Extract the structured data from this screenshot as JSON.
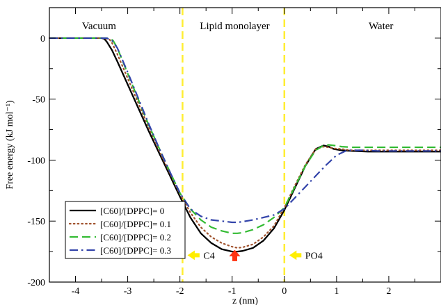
{
  "chart_data": {
    "type": "line",
    "title": "",
    "xlabel": "z (nm)",
    "ylabel": "Free energy (kJ mol⁻¹)",
    "xlim": [
      -4.5,
      3.0
    ],
    "ylim": [
      -200,
      25
    ],
    "x_ticks": [
      -4,
      -3,
      -2,
      -1,
      0,
      1,
      2
    ],
    "x_tick_labels": [
      "-4",
      "-3",
      "-2",
      "-1",
      "0",
      "1",
      "2"
    ],
    "y_ticks": [
      0,
      -50,
      -100,
      -150,
      -200
    ],
    "y_tick_labels": [
      "0",
      "-50",
      "-100",
      "-150",
      "-200"
    ],
    "grid": false,
    "legend_position": "bottom-left",
    "regions": [
      {
        "label": "Vacuum",
        "x": -3.55
      },
      {
        "label": "Lipid monolayer",
        "x": -0.95
      },
      {
        "label": "Water",
        "x": 1.85
      }
    ],
    "vertical_lines": [
      {
        "x": -1.95,
        "color": "#ffee33",
        "style": "dashed"
      },
      {
        "x": 0.0,
        "color": "#ffee33",
        "style": "dashed"
      }
    ],
    "markers": [
      {
        "label": "C4",
        "x": -1.95,
        "y": -178,
        "direction": "left",
        "color": "#ffee00"
      },
      {
        "label": "PO4",
        "x": 0.0,
        "y": -178,
        "direction": "left",
        "color": "#ffee00"
      },
      {
        "label": "",
        "x": -0.95,
        "y": -178,
        "direction": "up",
        "color": "#ff3311"
      }
    ],
    "series": [
      {
        "name": "[C60]/[DPPC]= 0",
        "color": "#000000",
        "style": "solid",
        "x": [
          -4.5,
          -3.5,
          -3.45,
          -3.4,
          -3.3,
          -3.2,
          -3.0,
          -2.8,
          -2.6,
          -2.4,
          -2.2,
          -2.0,
          -1.8,
          -1.6,
          -1.4,
          -1.2,
          -1.0,
          -0.9,
          -0.8,
          -0.6,
          -0.4,
          -0.2,
          0.0,
          0.2,
          0.4,
          0.6,
          0.75,
          0.85,
          0.95,
          1.1,
          1.3,
          1.6,
          2.0,
          3.0
        ],
        "y": [
          0,
          0,
          -0.5,
          -3,
          -10,
          -19,
          -38,
          -57,
          -76,
          -94,
          -112,
          -130,
          -147,
          -160,
          -168,
          -173,
          -175,
          -175,
          -174.5,
          -172,
          -166,
          -156,
          -141,
          -123,
          -105,
          -91,
          -88,
          -89,
          -91,
          -92,
          -92.5,
          -93,
          -93,
          -93
        ]
      },
      {
        "name": "[C60]/[DPPC]= 0.1",
        "color": "#a0522d",
        "style": "dotted",
        "x": [
          -4.5,
          -3.45,
          -3.35,
          -3.3,
          -3.2,
          -3.0,
          -2.8,
          -2.6,
          -2.4,
          -2.2,
          -2.0,
          -1.8,
          -1.6,
          -1.4,
          -1.2,
          -1.0,
          -0.9,
          -0.8,
          -0.6,
          -0.4,
          -0.2,
          0.0,
          0.2,
          0.4,
          0.6,
          0.75,
          0.85,
          0.95,
          1.1,
          1.3,
          1.6,
          2.0,
          3.0
        ],
        "y": [
          0,
          0,
          -1,
          -4,
          -13,
          -33,
          -53,
          -73,
          -92,
          -110,
          -128,
          -143,
          -155,
          -163,
          -168,
          -171,
          -172,
          -171.5,
          -169,
          -163,
          -154,
          -139,
          -121,
          -104,
          -91,
          -89,
          -89.5,
          -90.5,
          -91,
          -92,
          -92,
          -92,
          -92
        ]
      },
      {
        "name": "[C60]/[DPPC]= 0.2",
        "color": "#33bb33",
        "style": "dashed",
        "x": [
          -4.5,
          -3.35,
          -3.28,
          -3.2,
          -3.0,
          -2.8,
          -2.6,
          -2.4,
          -2.2,
          -2.0,
          -1.8,
          -1.6,
          -1.4,
          -1.2,
          -1.0,
          -0.9,
          -0.8,
          -0.6,
          -0.4,
          -0.2,
          0.0,
          0.2,
          0.4,
          0.6,
          0.75,
          0.85,
          0.95,
          1.1,
          1.3,
          1.6,
          2.0,
          3.0
        ],
        "y": [
          0,
          0,
          -2,
          -8,
          -29,
          -50,
          -71,
          -90,
          -109,
          -127,
          -140,
          -149,
          -155,
          -158,
          -160,
          -160,
          -159.5,
          -157,
          -153,
          -147,
          -139,
          -122,
          -105,
          -92,
          -88,
          -87.5,
          -88,
          -89,
          -89.5,
          -89.5,
          -89.5,
          -89.5
        ]
      },
      {
        "name": "[C60]/[DPPC]= 0.3",
        "color": "#3344aa",
        "style": "dashdot",
        "x": [
          -4.5,
          -3.4,
          -3.3,
          -3.2,
          -3.0,
          -2.8,
          -2.6,
          -2.4,
          -2.2,
          -2.0,
          -1.8,
          -1.6,
          -1.4,
          -1.2,
          -1.0,
          -0.9,
          -0.8,
          -0.6,
          -0.4,
          -0.2,
          0.0,
          0.2,
          0.4,
          0.6,
          0.8,
          1.0,
          1.2,
          1.5,
          1.8,
          2.0,
          3.0
        ],
        "y": [
          0,
          0,
          -2,
          -8,
          -28,
          -49,
          -70,
          -90,
          -109,
          -127,
          -140,
          -146,
          -149,
          -150,
          -151,
          -151,
          -150.5,
          -149,
          -147,
          -145,
          -140,
          -131,
          -122,
          -113,
          -104,
          -96,
          -92,
          -92,
          -92.5,
          -92.5,
          -92.5
        ]
      }
    ]
  }
}
